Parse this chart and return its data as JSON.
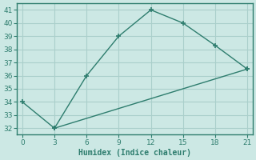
{
  "line1_x": [
    0,
    3,
    6,
    9,
    12,
    15,
    18,
    21
  ],
  "line1_y": [
    34,
    32,
    36,
    39,
    41,
    40,
    38.3,
    36.5
  ],
  "line2_x": [
    3,
    21
  ],
  "line2_y": [
    32,
    36.5
  ],
  "color": "#2e7d6e",
  "bg_color": "#cce8e4",
  "grid_color": "#aacfcb",
  "xlabel": "Humidex (Indice chaleur)",
  "xlim": [
    -0.5,
    21.5
  ],
  "ylim": [
    31.5,
    41.5
  ],
  "xticks": [
    0,
    3,
    6,
    9,
    12,
    15,
    18,
    21
  ],
  "yticks": [
    32,
    33,
    34,
    35,
    36,
    37,
    38,
    39,
    40,
    41
  ],
  "marker": "+"
}
